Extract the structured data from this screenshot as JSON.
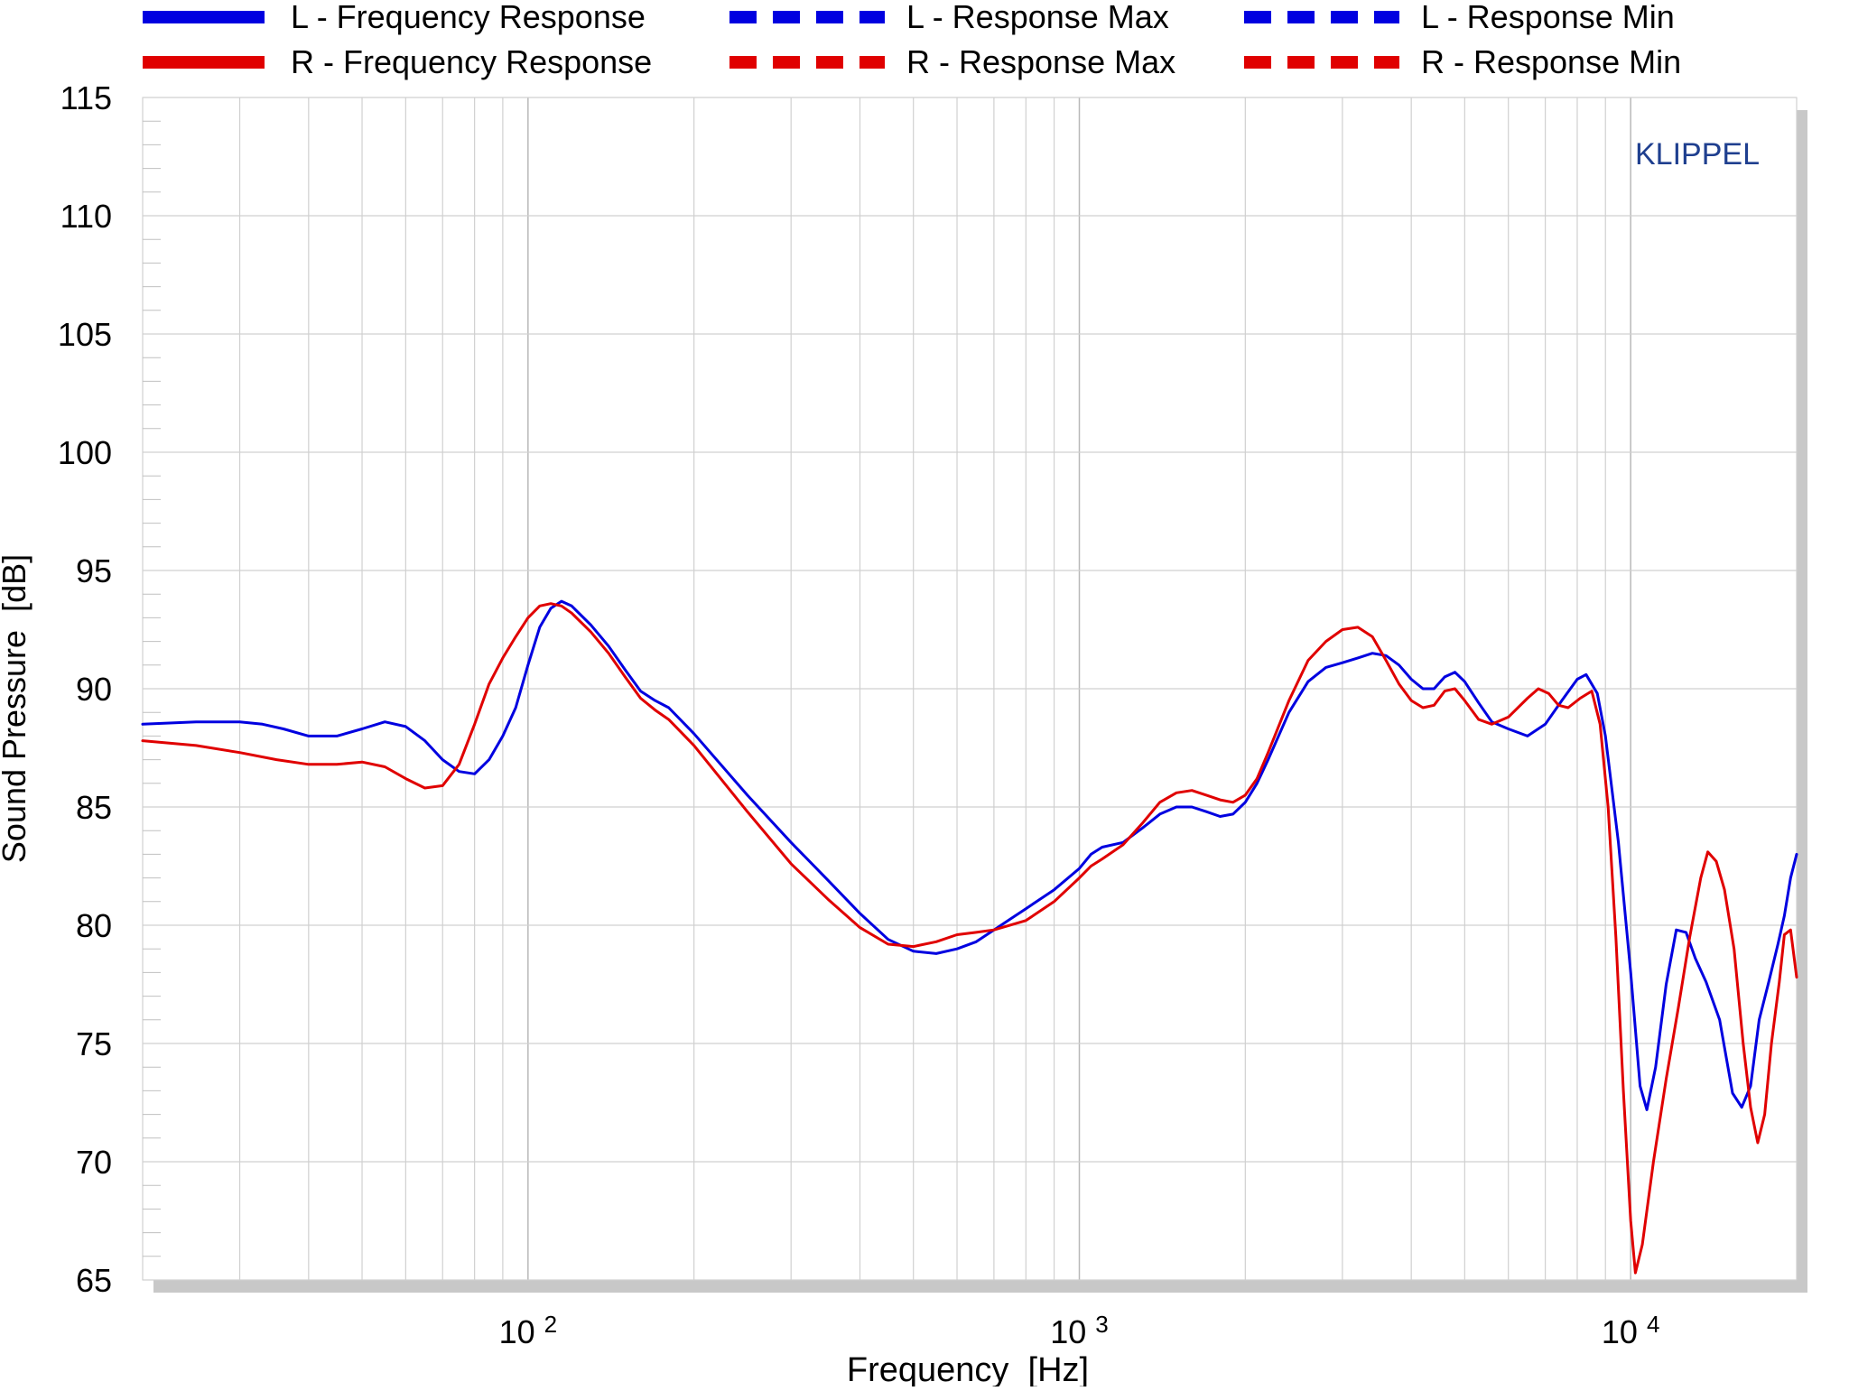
{
  "chart_data": {
    "type": "line",
    "title": "",
    "xlabel": "Frequency  [Hz]",
    "ylabel": "Sound Pressure  [dB]",
    "x_scale": "log",
    "xlim": [
      20,
      20000
    ],
    "ylim": [
      65,
      115
    ],
    "x_ticks": [
      {
        "base": "10",
        "exp": "2",
        "value": 100
      },
      {
        "base": "10",
        "exp": "3",
        "value": 1000
      },
      {
        "base": "10",
        "exp": "4",
        "value": 10000
      }
    ],
    "y_ticks": [
      65,
      70,
      75,
      80,
      85,
      90,
      95,
      100,
      105,
      110,
      115
    ],
    "grid": true,
    "legend_position": "top",
    "watermark": "KLIPPEL",
    "colors": {
      "L": "#0000e0",
      "R": "#e00000",
      "watermark": "#1f3f8f",
      "grid": "#c8c8c8"
    },
    "legend": [
      {
        "label": "L - Frequency Response",
        "color": "#0000e0",
        "style": "solid"
      },
      {
        "label": "L - Response Max",
        "color": "#0000e0",
        "style": "dashed"
      },
      {
        "label": "L - Response Min",
        "color": "#0000e0",
        "style": "dashed"
      },
      {
        "label": "R - Frequency Response",
        "color": "#e00000",
        "style": "solid"
      },
      {
        "label": "R - Response Max",
        "color": "#e00000",
        "style": "dashed"
      },
      {
        "label": "R - Response Min",
        "color": "#e00000",
        "style": "dashed"
      }
    ],
    "series": [
      {
        "name": "L - Frequency Response",
        "color": "#0000e0",
        "points": [
          [
            20,
            88.5
          ],
          [
            25,
            88.6
          ],
          [
            30,
            88.6
          ],
          [
            33,
            88.5
          ],
          [
            36,
            88.3
          ],
          [
            40,
            88.0
          ],
          [
            45,
            88.0
          ],
          [
            50,
            88.3
          ],
          [
            55,
            88.6
          ],
          [
            60,
            88.4
          ],
          [
            65,
            87.8
          ],
          [
            70,
            87.0
          ],
          [
            75,
            86.5
          ],
          [
            80,
            86.4
          ],
          [
            85,
            87.0
          ],
          [
            90,
            88.0
          ],
          [
            95,
            89.2
          ],
          [
            100,
            91.0
          ],
          [
            105,
            92.6
          ],
          [
            110,
            93.4
          ],
          [
            115,
            93.7
          ],
          [
            120,
            93.5
          ],
          [
            130,
            92.7
          ],
          [
            140,
            91.8
          ],
          [
            150,
            90.8
          ],
          [
            160,
            89.9
          ],
          [
            170,
            89.5
          ],
          [
            180,
            89.2
          ],
          [
            200,
            88.1
          ],
          [
            250,
            85.5
          ],
          [
            300,
            83.5
          ],
          [
            350,
            81.9
          ],
          [
            400,
            80.5
          ],
          [
            450,
            79.4
          ],
          [
            500,
            78.9
          ],
          [
            550,
            78.8
          ],
          [
            600,
            79.0
          ],
          [
            650,
            79.3
          ],
          [
            700,
            79.8
          ],
          [
            800,
            80.7
          ],
          [
            900,
            81.5
          ],
          [
            1000,
            82.4
          ],
          [
            1050,
            83.0
          ],
          [
            1100,
            83.3
          ],
          [
            1200,
            83.5
          ],
          [
            1300,
            84.1
          ],
          [
            1400,
            84.7
          ],
          [
            1500,
            85.0
          ],
          [
            1600,
            85.0
          ],
          [
            1700,
            84.8
          ],
          [
            1800,
            84.6
          ],
          [
            1900,
            84.7
          ],
          [
            2000,
            85.2
          ],
          [
            2100,
            86.0
          ],
          [
            2200,
            87.0
          ],
          [
            2400,
            89.0
          ],
          [
            2600,
            90.3
          ],
          [
            2800,
            90.9
          ],
          [
            3000,
            91.1
          ],
          [
            3200,
            91.3
          ],
          [
            3400,
            91.5
          ],
          [
            3600,
            91.4
          ],
          [
            3800,
            91.0
          ],
          [
            4000,
            90.4
          ],
          [
            4200,
            90.0
          ],
          [
            4400,
            90.0
          ],
          [
            4600,
            90.5
          ],
          [
            4800,
            90.7
          ],
          [
            5000,
            90.3
          ],
          [
            5300,
            89.4
          ],
          [
            5600,
            88.6
          ],
          [
            6000,
            88.3
          ],
          [
            6500,
            88.0
          ],
          [
            7000,
            88.5
          ],
          [
            7500,
            89.5
          ],
          [
            8000,
            90.4
          ],
          [
            8300,
            90.6
          ],
          [
            8700,
            89.8
          ],
          [
            9000,
            88.0
          ],
          [
            9500,
            83.5
          ],
          [
            10000,
            78.0
          ],
          [
            10400,
            73.2
          ],
          [
            10700,
            72.2
          ],
          [
            11100,
            74.0
          ],
          [
            11600,
            77.5
          ],
          [
            12100,
            79.8
          ],
          [
            12600,
            79.7
          ],
          [
            13100,
            78.6
          ],
          [
            13700,
            77.6
          ],
          [
            14500,
            76.0
          ],
          [
            15300,
            72.9
          ],
          [
            15900,
            72.3
          ],
          [
            16500,
            73.2
          ],
          [
            17100,
            76.0
          ],
          [
            17800,
            77.6
          ],
          [
            18500,
            79.2
          ],
          [
            19000,
            80.4
          ],
          [
            19500,
            82.0
          ],
          [
            20000,
            83.0
          ]
        ]
      },
      {
        "name": "R - Frequency Response",
        "color": "#e00000",
        "points": [
          [
            20,
            87.8
          ],
          [
            25,
            87.6
          ],
          [
            30,
            87.3
          ],
          [
            35,
            87.0
          ],
          [
            40,
            86.8
          ],
          [
            45,
            86.8
          ],
          [
            50,
            86.9
          ],
          [
            55,
            86.7
          ],
          [
            60,
            86.2
          ],
          [
            65,
            85.8
          ],
          [
            70,
            85.9
          ],
          [
            75,
            86.8
          ],
          [
            80,
            88.5
          ],
          [
            85,
            90.2
          ],
          [
            90,
            91.3
          ],
          [
            95,
            92.2
          ],
          [
            100,
            93.0
          ],
          [
            105,
            93.5
          ],
          [
            110,
            93.6
          ],
          [
            115,
            93.5
          ],
          [
            120,
            93.2
          ],
          [
            130,
            92.4
          ],
          [
            140,
            91.5
          ],
          [
            150,
            90.5
          ],
          [
            160,
            89.6
          ],
          [
            170,
            89.1
          ],
          [
            180,
            88.7
          ],
          [
            200,
            87.6
          ],
          [
            250,
            84.8
          ],
          [
            300,
            82.6
          ],
          [
            350,
            81.1
          ],
          [
            400,
            79.9
          ],
          [
            450,
            79.2
          ],
          [
            500,
            79.1
          ],
          [
            550,
            79.3
          ],
          [
            600,
            79.6
          ],
          [
            650,
            79.7
          ],
          [
            700,
            79.8
          ],
          [
            800,
            80.2
          ],
          [
            900,
            81.0
          ],
          [
            1000,
            82.0
          ],
          [
            1050,
            82.5
          ],
          [
            1100,
            82.8
          ],
          [
            1200,
            83.4
          ],
          [
            1300,
            84.3
          ],
          [
            1400,
            85.2
          ],
          [
            1500,
            85.6
          ],
          [
            1600,
            85.7
          ],
          [
            1700,
            85.5
          ],
          [
            1800,
            85.3
          ],
          [
            1900,
            85.2
          ],
          [
            2000,
            85.5
          ],
          [
            2100,
            86.2
          ],
          [
            2200,
            87.3
          ],
          [
            2400,
            89.5
          ],
          [
            2600,
            91.2
          ],
          [
            2800,
            92.0
          ],
          [
            3000,
            92.5
          ],
          [
            3200,
            92.6
          ],
          [
            3400,
            92.2
          ],
          [
            3600,
            91.2
          ],
          [
            3800,
            90.2
          ],
          [
            4000,
            89.5
          ],
          [
            4200,
            89.2
          ],
          [
            4400,
            89.3
          ],
          [
            4600,
            89.9
          ],
          [
            4800,
            90.0
          ],
          [
            5000,
            89.5
          ],
          [
            5300,
            88.7
          ],
          [
            5600,
            88.5
          ],
          [
            6000,
            88.8
          ],
          [
            6500,
            89.6
          ],
          [
            6800,
            90.0
          ],
          [
            7100,
            89.8
          ],
          [
            7400,
            89.3
          ],
          [
            7700,
            89.2
          ],
          [
            8100,
            89.6
          ],
          [
            8500,
            89.9
          ],
          [
            8800,
            88.5
          ],
          [
            9100,
            85.0
          ],
          [
            9400,
            79.5
          ],
          [
            9700,
            73.0
          ],
          [
            10000,
            67.5
          ],
          [
            10200,
            65.3
          ],
          [
            10500,
            66.5
          ],
          [
            11000,
            70.0
          ],
          [
            11600,
            73.5
          ],
          [
            12200,
            76.5
          ],
          [
            12800,
            79.5
          ],
          [
            13400,
            82.0
          ],
          [
            13800,
            83.1
          ],
          [
            14300,
            82.7
          ],
          [
            14800,
            81.5
          ],
          [
            15400,
            79.0
          ],
          [
            16000,
            75.0
          ],
          [
            16500,
            72.3
          ],
          [
            17000,
            70.8
          ],
          [
            17500,
            72.0
          ],
          [
            18000,
            75.0
          ],
          [
            18600,
            77.6
          ],
          [
            19000,
            79.6
          ],
          [
            19500,
            79.8
          ],
          [
            20000,
            77.8
          ]
        ]
      }
    ]
  }
}
